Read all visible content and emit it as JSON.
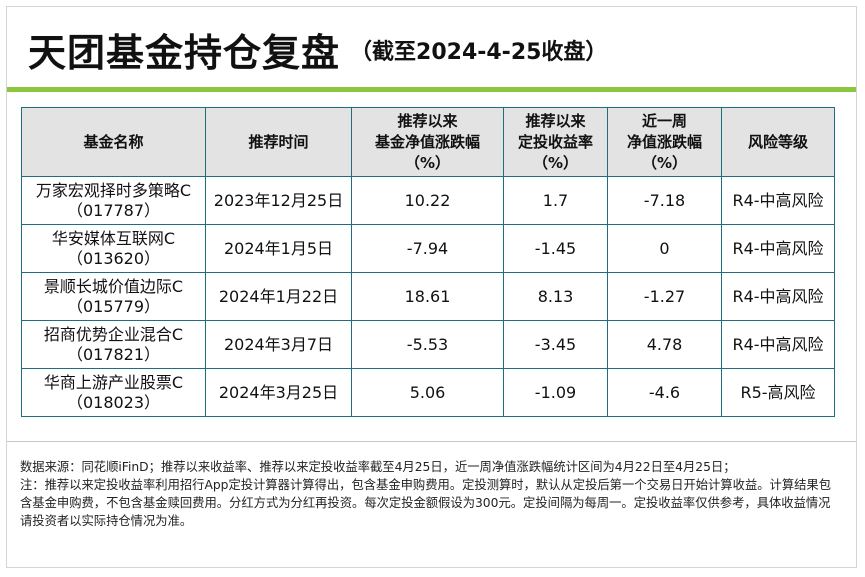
{
  "title": "天团基金持仓复盘",
  "subtitle": "（截至2024-4-25收盘）",
  "table": {
    "headers": [
      [
        "基金名称"
      ],
      [
        "推荐时间"
      ],
      [
        "推荐以来",
        "基金净值涨跌幅",
        "（%）"
      ],
      [
        "推荐以来",
        "定投收益率",
        "（%）"
      ],
      [
        "近一周",
        "净值涨跌幅",
        "（%）"
      ],
      [
        "风险等级"
      ]
    ],
    "rows": [
      {
        "name": "万家宏观择时多策略C",
        "code": "（017787）",
        "date": "2023年12月25日",
        "nav_change": "10.22",
        "dca_return": "1.7",
        "week_change": "-7.18",
        "risk": "R4-中高风险"
      },
      {
        "name": "华安媒体互联网C",
        "code": "（013620）",
        "date": "2024年1月5日",
        "nav_change": "-7.94",
        "dca_return": "-1.45",
        "week_change": "0",
        "risk": "R4-中高风险"
      },
      {
        "name": "景顺长城价值边际C",
        "code": "（015779）",
        "date": "2024年1月22日",
        "nav_change": "18.61",
        "dca_return": "8.13",
        "week_change": "-1.27",
        "risk": "R4-中高风险"
      },
      {
        "name": "招商优势企业混合C",
        "code": "（017821）",
        "date": "2024年3月7日",
        "nav_change": "-5.53",
        "dca_return": "-3.45",
        "week_change": "4.78",
        "risk": "R4-中高风险"
      },
      {
        "name": "华商上游产业股票C",
        "code": "（018023）",
        "date": "2024年3月25日",
        "nav_change": "5.06",
        "dca_return": "-1.09",
        "week_change": "-4.6",
        "risk": "R5-高风险"
      }
    ]
  },
  "notes": {
    "source": "数据来源：同花顺iFinD；推荐以来收益率、推荐以来定投收益率截至4月25日，近一周净值涨跌幅统计区间为4月22日至4月25日；",
    "note": "注：推荐以来定投收益率利用招行App定投计算器计算得出，包含基金申购费用。定投测算时，默认从定投后第一个交易日开始计算收益。计算结果包含基金申购费，不包含基金赎回费用。分红方式为分红再投资。每次定投金额假设为300元。定投间隔为每周一。定投收益率仅供参考，具体收益情况请投资者以实际持仓情况为准。"
  },
  "colors": {
    "accent_green": "#8cc63f",
    "header_bg": "#e3e3e3",
    "table_border": "#1f6e7d"
  }
}
